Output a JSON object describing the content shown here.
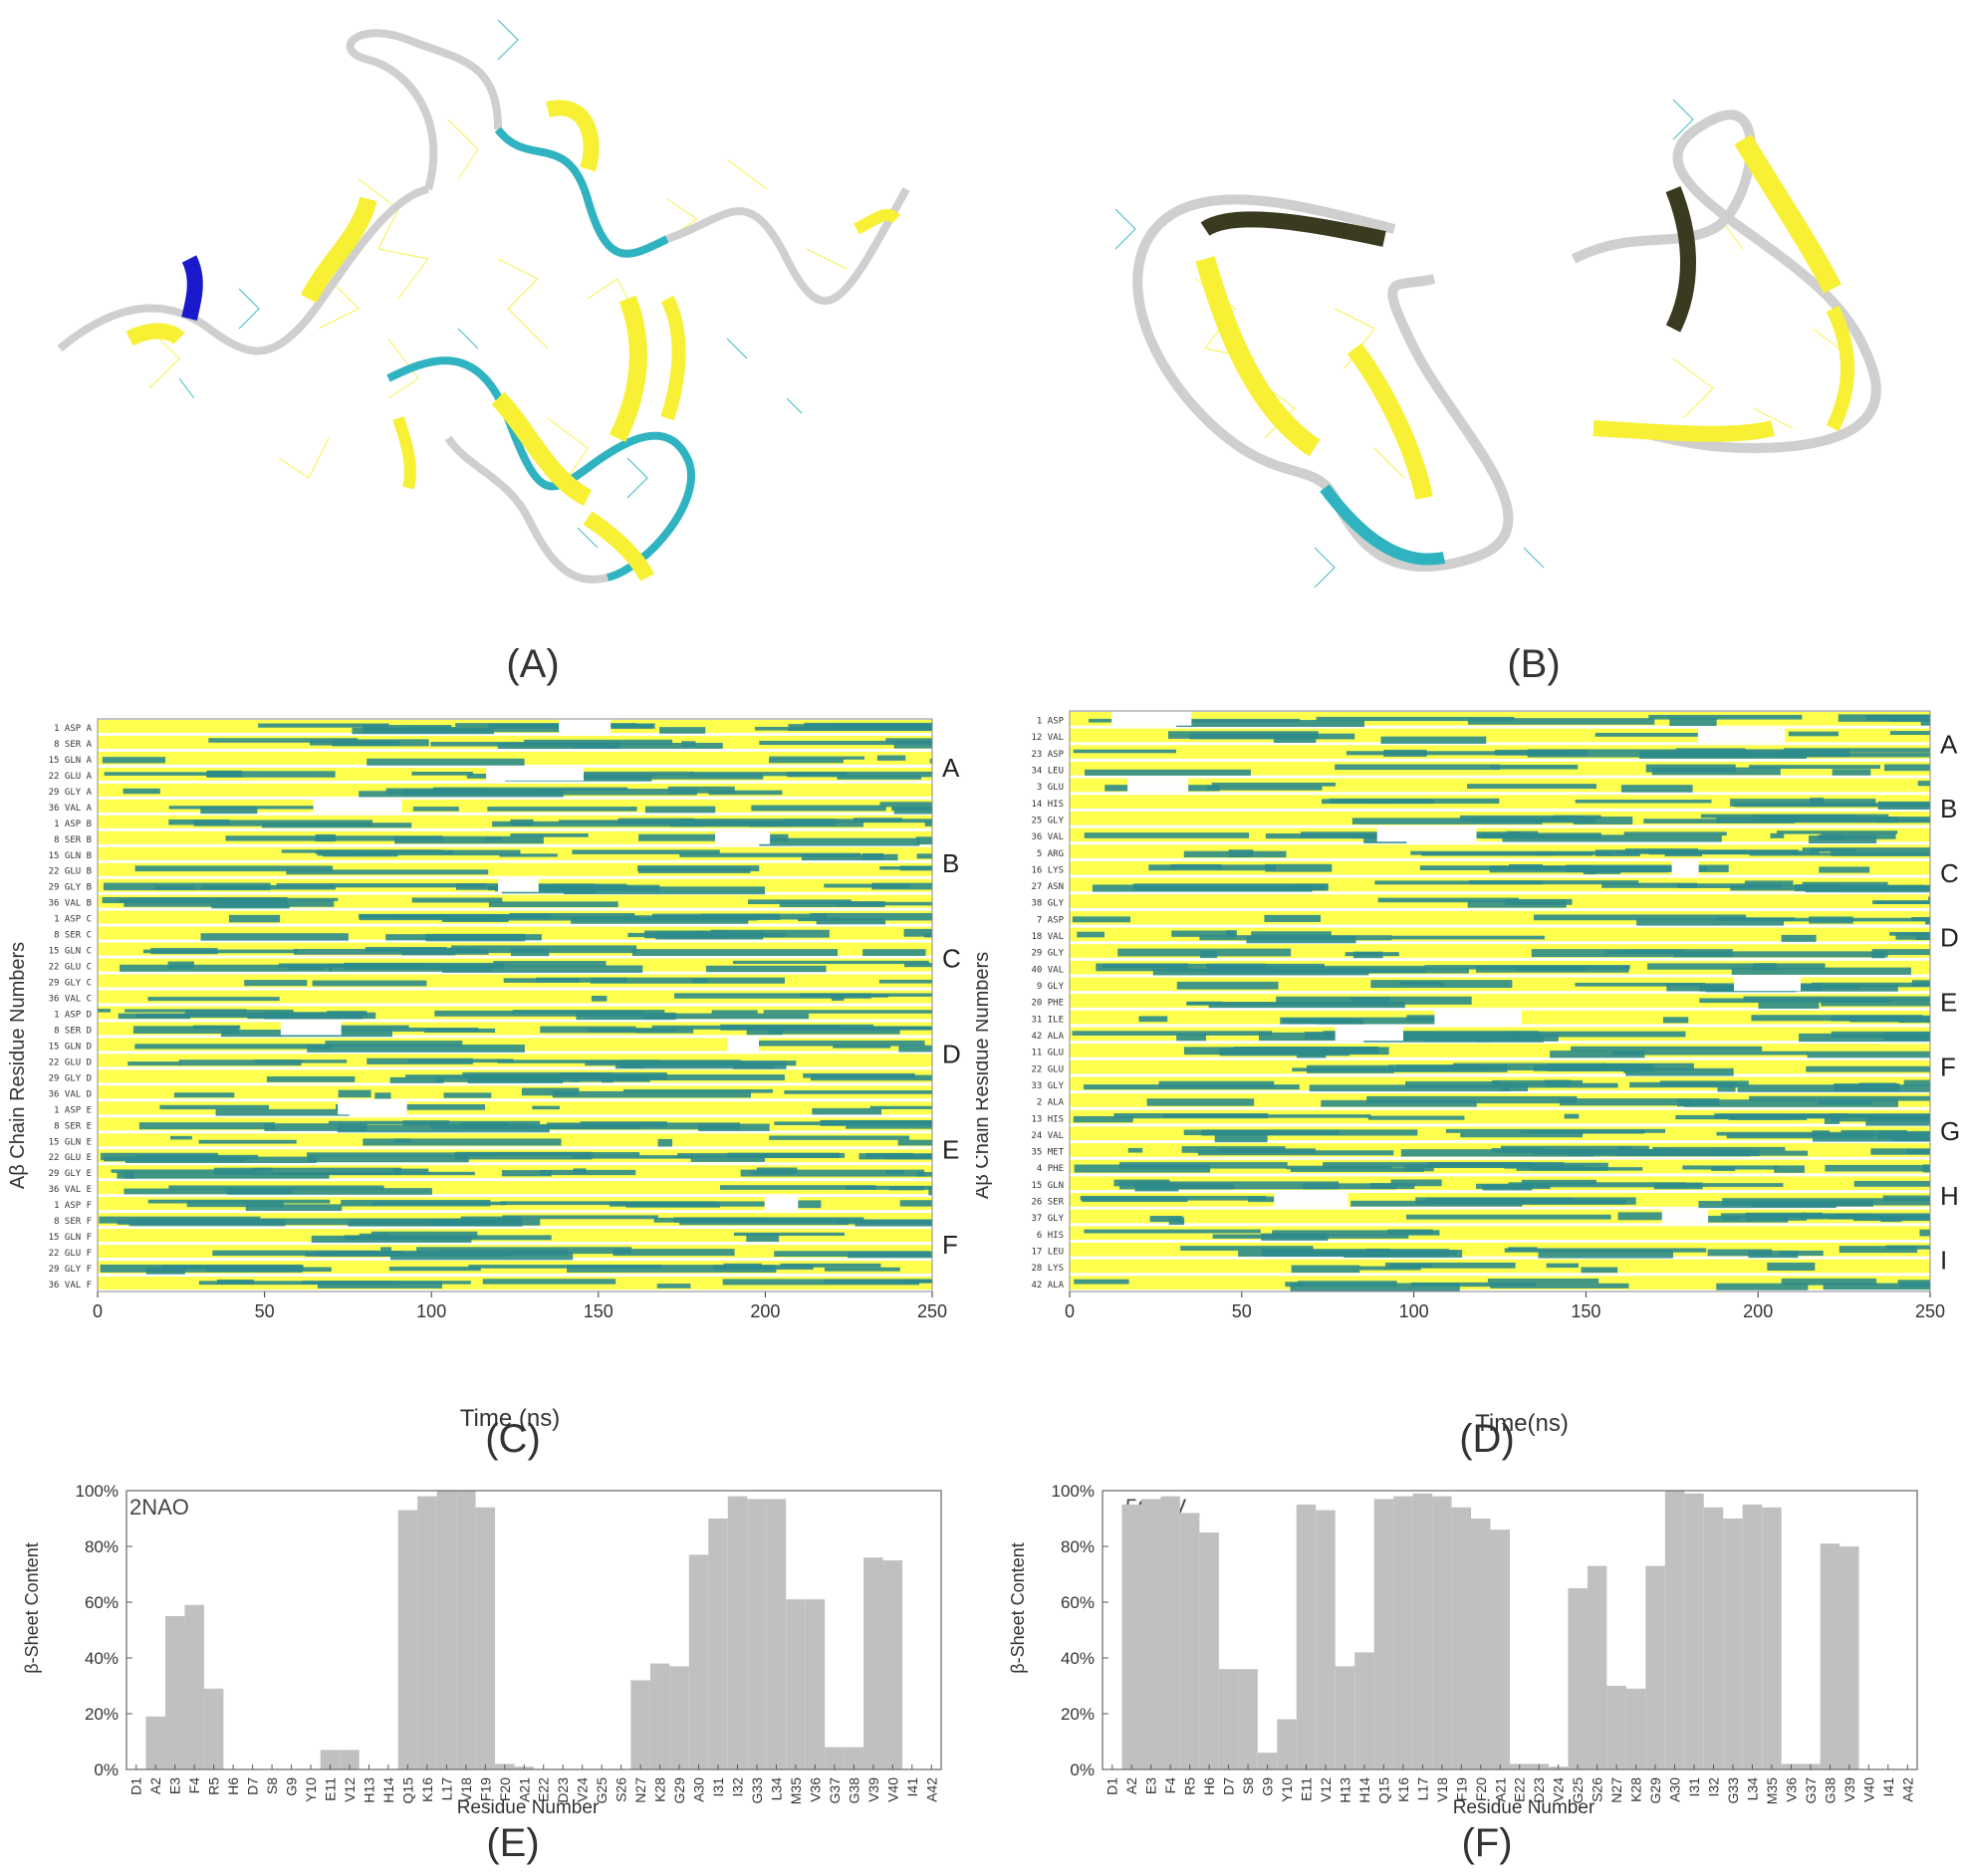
{
  "panel_labels": {
    "a": "(A)",
    "b": "(B)",
    "c": "(C)",
    "d": "(D)",
    "e": "(E)",
    "f": "(F)"
  },
  "colors": {
    "sheet": "#f7f035",
    "turn": "#2fb3c0",
    "coil": "#cfcfcf",
    "helix": "#1a1acc",
    "ss_bar_sheet": "#ffff4d",
    "ss_bar_turn": "#2e8b8b",
    "ss_bar_blue": "#1414e0",
    "bar_gray": "#c0c0c0"
  },
  "chart_data": [
    {
      "id": "C",
      "type": "heatmap",
      "ylabel": "Aβ Chain Residue Numbers",
      "xlabel": "Time (ns)",
      "xlim": [
        0,
        250
      ],
      "xticks": [
        0,
        50,
        100,
        150,
        200,
        250
      ],
      "row_labels": [
        "1 ASP A",
        "8 SER A",
        "15 GLN A",
        "22 GLU A",
        "29 GLY A",
        "36 VAL A",
        "1 ASP B",
        "8 SER B",
        "15 GLN B",
        "22 GLU B",
        "29 GLY B",
        "36 VAL B",
        "1 ASP C",
        "8 SER C",
        "15 GLN C",
        "22 GLU C",
        "29 GLY C",
        "36 VAL C",
        "1 ASP D",
        "8 SER D",
        "15 GLN D",
        "22 GLU D",
        "29 GLY D",
        "36 VAL D",
        "1 ASP E",
        "8 SER E",
        "15 GLN E",
        "22 GLU E",
        "29 GLY E",
        "36 VAL E",
        "1 ASP F",
        "8 SER F",
        "15 GLN F",
        "22 GLU F",
        "29 GLY F",
        "36 VAL F"
      ],
      "chain_labels": [
        "A",
        "B",
        "C",
        "D",
        "E",
        "F"
      ]
    },
    {
      "id": "D",
      "type": "heatmap",
      "ylabel": "Aβ Chain Residue Numbers",
      "xlabel": "Time(ns)",
      "xlim": [
        0,
        250
      ],
      "xticks": [
        0,
        50,
        100,
        150,
        200,
        250
      ],
      "row_labels": [
        "1 ASP",
        "12 VAL",
        "23 ASP",
        "34 LEU",
        "3 GLU",
        "14 HIS",
        "25 GLY",
        "36 VAL",
        "5 ARG",
        "16 LYS",
        "27 ASN",
        "38 GLY",
        "7 ASP",
        "18 VAL",
        "29 GLY",
        "40 VAL",
        "9 GLY",
        "20 PHE",
        "31 ILE",
        "42 ALA",
        "11 GLU",
        "22 GLU",
        "33 GLY",
        "2 ALA",
        "13 HIS",
        "24 VAL",
        "35 MET",
        "4 PHE",
        "15 GLN",
        "26 SER",
        "37 GLY",
        "6 HIS",
        "17 LEU",
        "28 LYS",
        "42 ALA"
      ],
      "chain_labels": [
        "A",
        "B",
        "C",
        "D",
        "E",
        "F",
        "G",
        "H",
        "I"
      ]
    },
    {
      "id": "E",
      "type": "bar",
      "title": "2NAO",
      "xlabel": "Residue Number",
      "ylabel": "β-Sheet Content",
      "ylim": [
        0,
        100
      ],
      "yticks": [
        "0%",
        "20%",
        "40%",
        "60%",
        "80%",
        "100%"
      ],
      "categories": [
        "D1",
        "A2",
        "E3",
        "F4",
        "R5",
        "H6",
        "D7",
        "S8",
        "G9",
        "Y10",
        "E11",
        "V12",
        "H13",
        "H14",
        "Q15",
        "K16",
        "L17",
        "V18",
        "F19",
        "F20",
        "A21",
        "E22",
        "D23",
        "V24",
        "G25",
        "S26",
        "N27",
        "K28",
        "G29",
        "A30",
        "I31",
        "I32",
        "G33",
        "L34",
        "M35",
        "V36",
        "G37",
        "G38",
        "V39",
        "V40",
        "I41",
        "A42"
      ],
      "values": [
        0,
        19,
        55,
        59,
        29,
        0,
        0,
        0,
        0,
        0,
        7,
        7,
        0,
        0,
        93,
        98,
        100,
        100,
        94,
        2,
        1,
        0,
        0,
        0,
        0,
        0,
        32,
        38,
        37,
        77,
        90,
        98,
        97,
        97,
        61,
        61,
        8,
        8,
        76,
        75,
        0,
        0
      ]
    },
    {
      "id": "F",
      "type": "bar",
      "title": "5OQV",
      "xlabel": "Residue Number",
      "ylabel": "β-Sheet Content",
      "ylim": [
        0,
        100
      ],
      "yticks": [
        "0%",
        "20%",
        "40%",
        "60%",
        "80%",
        "100%"
      ],
      "categories": [
        "D1",
        "A2",
        "E3",
        "F4",
        "R5",
        "H6",
        "D7",
        "S8",
        "G9",
        "Y10",
        "E11",
        "V12",
        "H13",
        "H14",
        "Q15",
        "K16",
        "L17",
        "V18",
        "F19",
        "F20",
        "A21",
        "E22",
        "D23",
        "V24",
        "G25",
        "S26",
        "N27",
        "K28",
        "G29",
        "A30",
        "I31",
        "I32",
        "G33",
        "L34",
        "M35",
        "V36",
        "G37",
        "G38",
        "V39",
        "V40",
        "I41",
        "A42"
      ],
      "values": [
        0,
        95,
        97,
        98,
        92,
        85,
        36,
        36,
        6,
        18,
        95,
        93,
        37,
        42,
        97,
        98,
        99,
        98,
        94,
        90,
        86,
        2,
        2,
        1,
        65,
        73,
        30,
        29,
        73,
        100,
        99,
        94,
        90,
        95,
        94,
        2,
        2,
        81,
        80,
        0,
        0,
        0
      ]
    }
  ]
}
